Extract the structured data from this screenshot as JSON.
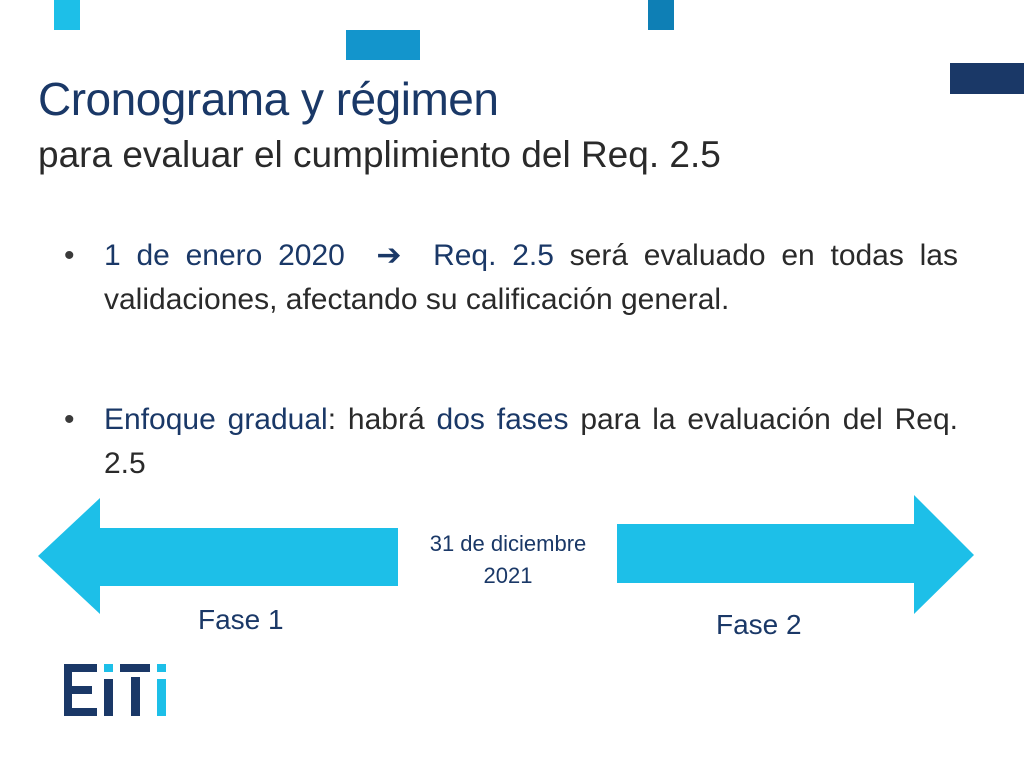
{
  "slide": {
    "title": "Cronograma y régimen",
    "subtitle": "para evaluar el cumplimiento del Req. 2.5",
    "bullet_char": "•",
    "bullets": [
      {
        "lead": "1 de enero 2020",
        "arrow": "➔",
        "req": "Req. 2.5",
        "rest": " será evaluado en todas las validaciones, afectando su calificación general."
      },
      {
        "lead": "Enfoque gradual",
        "mid": ": habrá ",
        "emph": "dos fases",
        "rest": " para la evaluación del Req. 2.5"
      }
    ]
  },
  "timeline": {
    "date_line1": "31 de diciembre",
    "date_line2": "2021",
    "phase1_label": "Fase 1",
    "phase2_label": "Fase 2"
  },
  "logo": {
    "text": "EITI"
  },
  "colors": {
    "dark_navy": "#1a3867",
    "arrow_blue": "#1dbfe8",
    "medium_blue": "#0e7fb5",
    "text": "#2a2a2a"
  }
}
